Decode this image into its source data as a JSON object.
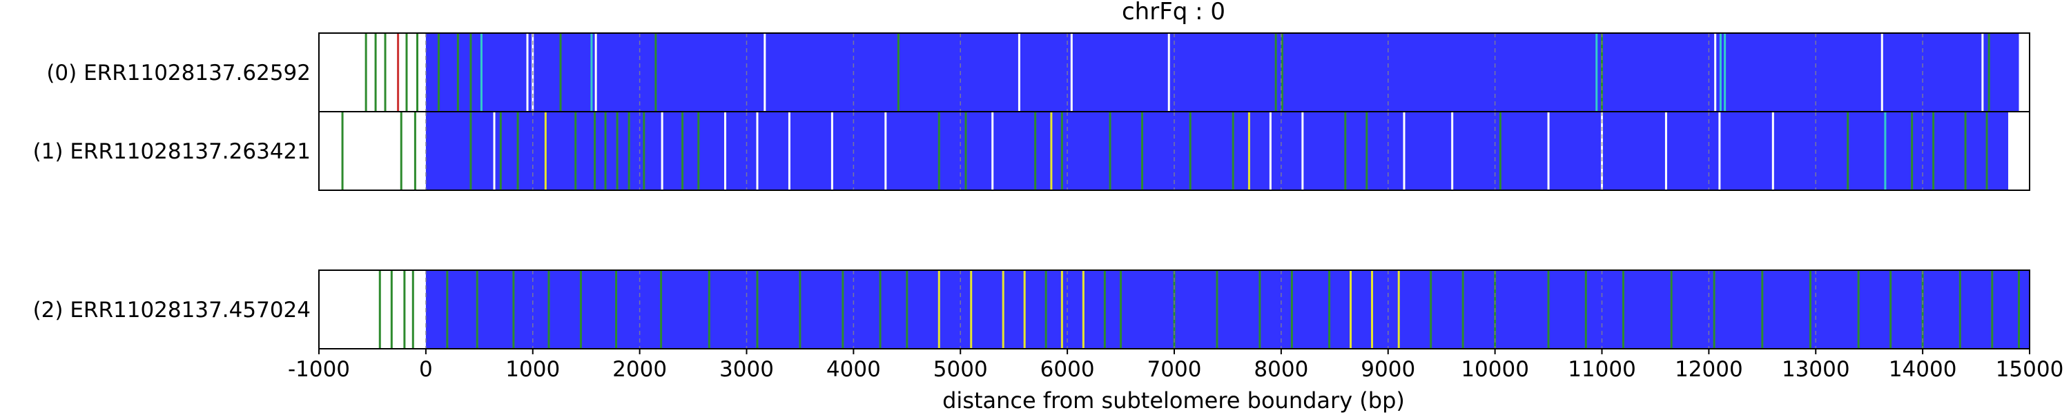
{
  "chart_data": {
    "type": "heatmap",
    "title": "chrFq : 0",
    "xlabel": "distance from subtelomere boundary (bp)",
    "ylabel": "",
    "xlim": [
      -1000,
      15000
    ],
    "xticks": [
      -1000,
      0,
      1000,
      2000,
      3000,
      4000,
      5000,
      6000,
      7000,
      8000,
      9000,
      10000,
      11000,
      12000,
      13000,
      14000,
      15000
    ],
    "xtick_labels": [
      "-1000",
      "0",
      "1000",
      "2000",
      "3000",
      "4000",
      "5000",
      "6000",
      "7000",
      "8000",
      "9000",
      "10000",
      "11000",
      "12000",
      "13000",
      "14000",
      "15000"
    ],
    "grid": "dashed vertical lines every 1000 bp",
    "colors": {
      "blue": "#3333ff",
      "green": "#2e8b2e",
      "yellow": "#e6e62e",
      "cyan": "#33cccc",
      "white": "#ffffff",
      "red": "#cc3333"
    },
    "series": [
      {
        "name": "(0) ERR11028137.62592",
        "read_start": 0,
        "read_end": 14900,
        "base_color": "blue",
        "bands": [
          {
            "x": -560,
            "c": "green"
          },
          {
            "x": -470,
            "c": "green"
          },
          {
            "x": -380,
            "c": "green"
          },
          {
            "x": -260,
            "c": "red"
          },
          {
            "x": -180,
            "c": "green"
          },
          {
            "x": -80,
            "c": "green"
          },
          {
            "x": 120,
            "c": "green"
          },
          {
            "x": 300,
            "c": "green"
          },
          {
            "x": 420,
            "c": "green"
          },
          {
            "x": 520,
            "c": "cyan"
          },
          {
            "x": 950,
            "c": "white"
          },
          {
            "x": 1000,
            "c": "white"
          },
          {
            "x": 1260,
            "c": "green"
          },
          {
            "x": 1550,
            "c": "cyan"
          },
          {
            "x": 1590,
            "c": "white"
          },
          {
            "x": 2150,
            "c": "green"
          },
          {
            "x": 3170,
            "c": "white"
          },
          {
            "x": 4420,
            "c": "green"
          },
          {
            "x": 5550,
            "c": "white"
          },
          {
            "x": 6040,
            "c": "white"
          },
          {
            "x": 6950,
            "c": "white"
          },
          {
            "x": 7950,
            "c": "green"
          },
          {
            "x": 8010,
            "c": "green"
          },
          {
            "x": 10950,
            "c": "cyan"
          },
          {
            "x": 11000,
            "c": "green"
          },
          {
            "x": 12060,
            "c": "white"
          },
          {
            "x": 12110,
            "c": "cyan"
          },
          {
            "x": 12150,
            "c": "cyan"
          },
          {
            "x": 13620,
            "c": "white"
          },
          {
            "x": 14560,
            "c": "white"
          },
          {
            "x": 14620,
            "c": "green"
          }
        ]
      },
      {
        "name": "(1) ERR11028137.263421",
        "read_start": 0,
        "read_end": 14800,
        "base_color": "blue",
        "bands": [
          {
            "x": -780,
            "c": "green"
          },
          {
            "x": -230,
            "c": "green"
          },
          {
            "x": -100,
            "c": "green"
          },
          {
            "x": 420,
            "c": "green"
          },
          {
            "x": 640,
            "c": "white"
          },
          {
            "x": 700,
            "c": "green"
          },
          {
            "x": 860,
            "c": "green"
          },
          {
            "x": 1120,
            "c": "yellow"
          },
          {
            "x": 1400,
            "c": "green"
          },
          {
            "x": 1580,
            "c": "green"
          },
          {
            "x": 1680,
            "c": "green"
          },
          {
            "x": 1790,
            "c": "green"
          },
          {
            "x": 1900,
            "c": "green"
          },
          {
            "x": 2040,
            "c": "green"
          },
          {
            "x": 2210,
            "c": "white"
          },
          {
            "x": 2400,
            "c": "green"
          },
          {
            "x": 2550,
            "c": "green"
          },
          {
            "x": 2800,
            "c": "white"
          },
          {
            "x": 3100,
            "c": "white"
          },
          {
            "x": 3400,
            "c": "white"
          },
          {
            "x": 3800,
            "c": "white"
          },
          {
            "x": 4300,
            "c": "white"
          },
          {
            "x": 4800,
            "c": "green"
          },
          {
            "x": 5050,
            "c": "green"
          },
          {
            "x": 5300,
            "c": "white"
          },
          {
            "x": 5700,
            "c": "green"
          },
          {
            "x": 5850,
            "c": "yellow"
          },
          {
            "x": 5950,
            "c": "green"
          },
          {
            "x": 6400,
            "c": "green"
          },
          {
            "x": 6700,
            "c": "green"
          },
          {
            "x": 7150,
            "c": "green"
          },
          {
            "x": 7550,
            "c": "green"
          },
          {
            "x": 7700,
            "c": "yellow"
          },
          {
            "x": 7900,
            "c": "white"
          },
          {
            "x": 8200,
            "c": "white"
          },
          {
            "x": 8600,
            "c": "green"
          },
          {
            "x": 8800,
            "c": "green"
          },
          {
            "x": 9150,
            "c": "white"
          },
          {
            "x": 9600,
            "c": "white"
          },
          {
            "x": 10050,
            "c": "green"
          },
          {
            "x": 10500,
            "c": "white"
          },
          {
            "x": 11000,
            "c": "white"
          },
          {
            "x": 11600,
            "c": "white"
          },
          {
            "x": 12100,
            "c": "white"
          },
          {
            "x": 12600,
            "c": "white"
          },
          {
            "x": 13300,
            "c": "green"
          },
          {
            "x": 13650,
            "c": "cyan"
          },
          {
            "x": 13900,
            "c": "green"
          },
          {
            "x": 14100,
            "c": "green"
          },
          {
            "x": 14400,
            "c": "green"
          },
          {
            "x": 14600,
            "c": "green"
          }
        ]
      },
      {
        "name": "(2) ERR11028137.457024",
        "read_start": 0,
        "read_end": 15000,
        "base_color": "blue",
        "bands": [
          {
            "x": -430,
            "c": "green"
          },
          {
            "x": -320,
            "c": "green"
          },
          {
            "x": -200,
            "c": "green"
          },
          {
            "x": -120,
            "c": "green"
          },
          {
            "x": 200,
            "c": "green"
          },
          {
            "x": 480,
            "c": "green"
          },
          {
            "x": 820,
            "c": "green"
          },
          {
            "x": 1150,
            "c": "green"
          },
          {
            "x": 1450,
            "c": "green"
          },
          {
            "x": 1780,
            "c": "green"
          },
          {
            "x": 2200,
            "c": "green"
          },
          {
            "x": 2650,
            "c": "green"
          },
          {
            "x": 3100,
            "c": "green"
          },
          {
            "x": 3500,
            "c": "green"
          },
          {
            "x": 3900,
            "c": "green"
          },
          {
            "x": 4250,
            "c": "green"
          },
          {
            "x": 4500,
            "c": "green"
          },
          {
            "x": 4800,
            "c": "yellow"
          },
          {
            "x": 5100,
            "c": "yellow"
          },
          {
            "x": 5400,
            "c": "yellow"
          },
          {
            "x": 5600,
            "c": "yellow"
          },
          {
            "x": 5800,
            "c": "green"
          },
          {
            "x": 5950,
            "c": "yellow"
          },
          {
            "x": 6150,
            "c": "yellow"
          },
          {
            "x": 6350,
            "c": "green"
          },
          {
            "x": 6500,
            "c": "green"
          },
          {
            "x": 7000,
            "c": "green"
          },
          {
            "x": 7400,
            "c": "green"
          },
          {
            "x": 7800,
            "c": "green"
          },
          {
            "x": 8100,
            "c": "green"
          },
          {
            "x": 8450,
            "c": "green"
          },
          {
            "x": 8650,
            "c": "yellow"
          },
          {
            "x": 8850,
            "c": "yellow"
          },
          {
            "x": 9100,
            "c": "yellow"
          },
          {
            "x": 9400,
            "c": "green"
          },
          {
            "x": 9700,
            "c": "green"
          },
          {
            "x": 10000,
            "c": "green"
          },
          {
            "x": 10500,
            "c": "green"
          },
          {
            "x": 10850,
            "c": "green"
          },
          {
            "x": 11200,
            "c": "green"
          },
          {
            "x": 11650,
            "c": "green"
          },
          {
            "x": 12050,
            "c": "green"
          },
          {
            "x": 12500,
            "c": "green"
          },
          {
            "x": 12950,
            "c": "green"
          },
          {
            "x": 13400,
            "c": "green"
          },
          {
            "x": 13700,
            "c": "green"
          },
          {
            "x": 14000,
            "c": "green"
          },
          {
            "x": 14350,
            "c": "green"
          },
          {
            "x": 14650,
            "c": "green"
          },
          {
            "x": 14900,
            "c": "green"
          }
        ]
      }
    ]
  }
}
